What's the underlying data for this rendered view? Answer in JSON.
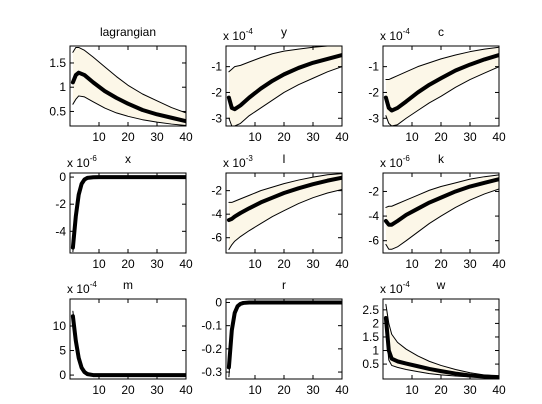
{
  "chart_data": [
    {
      "type": "line",
      "title": "lagrangian",
      "exponent": "",
      "xlim": [
        0,
        40
      ],
      "ylim": [
        0.2,
        1.85
      ],
      "xticks": [
        "10",
        "20",
        "30",
        "40"
      ],
      "yticks": [
        {
          "v": 0.5,
          "label": "0.5"
        },
        {
          "v": 1,
          "label": "1"
        },
        {
          "v": 1.5,
          "label": "1.5"
        }
      ],
      "series": [
        {
          "role": "upper",
          "x": [
            1,
            2,
            3,
            5,
            8,
            12,
            16,
            20,
            25,
            30,
            35,
            40
          ],
          "y": [
            1.72,
            1.82,
            1.82,
            1.76,
            1.62,
            1.42,
            1.22,
            1.04,
            0.86,
            0.72,
            0.58,
            0.47
          ]
        },
        {
          "role": "median",
          "x": [
            1,
            2,
            3,
            5,
            8,
            12,
            16,
            20,
            25,
            30,
            35,
            40
          ],
          "y": [
            1.1,
            1.25,
            1.3,
            1.25,
            1.1,
            0.92,
            0.78,
            0.66,
            0.53,
            0.44,
            0.37,
            0.3
          ]
        },
        {
          "role": "lower",
          "x": [
            1,
            2,
            3,
            5,
            8,
            12,
            16,
            20,
            25,
            30,
            35,
            40
          ],
          "y": [
            0.65,
            0.75,
            0.82,
            0.8,
            0.7,
            0.57,
            0.47,
            0.4,
            0.33,
            0.28,
            0.24,
            0.21
          ]
        }
      ]
    },
    {
      "type": "line",
      "title": "y",
      "exponent": "-4",
      "xlim": [
        0,
        40
      ],
      "ylim": [
        -3.3,
        -0.2
      ],
      "xticks": [
        "10",
        "20",
        "30",
        "40"
      ],
      "yticks": [
        {
          "v": -3,
          "label": "-3"
        },
        {
          "v": -2,
          "label": "-2"
        },
        {
          "v": -1,
          "label": "-1"
        }
      ],
      "series": [
        {
          "role": "upper",
          "x": [
            1,
            2,
            3,
            5,
            8,
            12,
            16,
            20,
            25,
            30,
            35,
            40
          ],
          "y": [
            -1.2,
            -1.1,
            -1.0,
            -0.95,
            -0.82,
            -0.65,
            -0.5,
            -0.4,
            -0.32,
            -0.25,
            -0.2,
            -0.18
          ]
        },
        {
          "role": "median",
          "x": [
            1,
            2,
            3,
            5,
            8,
            12,
            16,
            20,
            25,
            30,
            35,
            40
          ],
          "y": [
            -2.2,
            -2.6,
            -2.65,
            -2.5,
            -2.2,
            -1.85,
            -1.55,
            -1.3,
            -1.05,
            -0.85,
            -0.7,
            -0.55
          ]
        },
        {
          "role": "lower",
          "x": [
            1,
            2,
            3,
            5,
            8,
            12,
            16,
            20,
            25,
            30,
            35,
            40
          ],
          "y": [
            -3.0,
            -3.3,
            -3.3,
            -3.2,
            -2.9,
            -2.6,
            -2.3,
            -2.0,
            -1.7,
            -1.45,
            -1.2,
            -1.0
          ]
        }
      ]
    },
    {
      "type": "line",
      "title": "c",
      "exponent": "-4",
      "xlim": [
        0,
        40
      ],
      "ylim": [
        -3.3,
        -0.2
      ],
      "xticks": [
        "10",
        "20",
        "30",
        "40"
      ],
      "yticks": [
        {
          "v": -3,
          "label": "-3"
        },
        {
          "v": -2,
          "label": "-2"
        },
        {
          "v": -1,
          "label": "-1"
        }
      ],
      "series": [
        {
          "role": "upper",
          "x": [
            1,
            2,
            3,
            5,
            8,
            12,
            16,
            20,
            25,
            30,
            35,
            40
          ],
          "y": [
            -1.5,
            -1.5,
            -1.45,
            -1.35,
            -1.2,
            -1.0,
            -0.85,
            -0.7,
            -0.55,
            -0.42,
            -0.32,
            -0.25
          ]
        },
        {
          "role": "median",
          "x": [
            1,
            2,
            3,
            5,
            8,
            12,
            16,
            20,
            25,
            30,
            35,
            40
          ],
          "y": [
            -2.2,
            -2.6,
            -2.7,
            -2.6,
            -2.35,
            -2.0,
            -1.7,
            -1.45,
            -1.15,
            -0.92,
            -0.72,
            -0.55
          ]
        },
        {
          "role": "lower",
          "x": [
            1,
            2,
            3,
            5,
            8,
            12,
            16,
            20,
            25,
            30,
            35,
            40
          ],
          "y": [
            -2.9,
            -3.2,
            -3.3,
            -3.25,
            -3.0,
            -2.7,
            -2.4,
            -2.15,
            -1.8,
            -1.5,
            -1.25,
            -1.0
          ]
        }
      ]
    },
    {
      "type": "line",
      "title": "x",
      "exponent": "-6",
      "xlim": [
        0,
        40
      ],
      "ylim": [
        -5.6,
        0.3
      ],
      "xticks": [
        "10",
        "20",
        "30",
        "40"
      ],
      "yticks": [
        {
          "v": -4,
          "label": "-4"
        },
        {
          "v": -2,
          "label": "-2"
        },
        {
          "v": 0,
          "label": "0"
        }
      ],
      "series": [
        {
          "role": "upper",
          "x": [
            1,
            2,
            3,
            4,
            5,
            6,
            8,
            10,
            15,
            20,
            30,
            40
          ],
          "y": [
            -4.9,
            -2.6,
            -1.1,
            -0.4,
            -0.12,
            -0.04,
            0,
            0,
            0,
            0,
            0,
            0
          ]
        },
        {
          "role": "median",
          "x": [
            1,
            2,
            3,
            4,
            5,
            6,
            8,
            10,
            15,
            20,
            30,
            40
          ],
          "y": [
            -5.2,
            -2.9,
            -1.3,
            -0.5,
            -0.18,
            -0.06,
            -0.01,
            0,
            0,
            0,
            0,
            0
          ]
        },
        {
          "role": "lower",
          "x": [
            1,
            2,
            3,
            4,
            5,
            6,
            8,
            10,
            15,
            20,
            30,
            40
          ],
          "y": [
            -5.5,
            -3.2,
            -1.5,
            -0.6,
            -0.22,
            -0.08,
            -0.02,
            0,
            0,
            0,
            0,
            0
          ]
        }
      ]
    },
    {
      "type": "line",
      "title": "l",
      "exponent": "-3",
      "xlim": [
        0,
        40
      ],
      "ylim": [
        -7.3,
        -0.5
      ],
      "xticks": [
        "10",
        "20",
        "30",
        "40"
      ],
      "yticks": [
        {
          "v": -6,
          "label": "-6"
        },
        {
          "v": -4,
          "label": "-4"
        },
        {
          "v": -2,
          "label": "-2"
        }
      ],
      "series": [
        {
          "role": "upper",
          "x": [
            1,
            2,
            3,
            5,
            8,
            12,
            16,
            20,
            25,
            30,
            35,
            40
          ],
          "y": [
            -3.0,
            -3.0,
            -2.9,
            -2.7,
            -2.4,
            -2.0,
            -1.7,
            -1.4,
            -1.1,
            -0.85,
            -0.65,
            -0.55
          ]
        },
        {
          "role": "median",
          "x": [
            1,
            2,
            3,
            5,
            8,
            12,
            16,
            20,
            25,
            30,
            35,
            40
          ],
          "y": [
            -4.5,
            -4.4,
            -4.2,
            -3.9,
            -3.5,
            -3.0,
            -2.6,
            -2.2,
            -1.8,
            -1.45,
            -1.15,
            -0.9
          ]
        },
        {
          "role": "lower",
          "x": [
            1,
            2,
            3,
            5,
            8,
            12,
            16,
            20,
            25,
            30,
            35,
            40
          ],
          "y": [
            -7.0,
            -6.6,
            -6.3,
            -5.9,
            -5.4,
            -4.8,
            -4.2,
            -3.7,
            -3.1,
            -2.6,
            -2.2,
            -1.9
          ]
        }
      ]
    },
    {
      "type": "line",
      "title": "k",
      "exponent": "-6",
      "xlim": [
        0,
        40
      ],
      "ylim": [
        -7.0,
        -0.5
      ],
      "xticks": [
        "10",
        "20",
        "30",
        "40"
      ],
      "yticks": [
        {
          "v": -6,
          "label": "-6"
        },
        {
          "v": -4,
          "label": "-4"
        },
        {
          "v": -2,
          "label": "-2"
        }
      ],
      "series": [
        {
          "role": "upper",
          "x": [
            1,
            2,
            3,
            5,
            8,
            12,
            16,
            20,
            25,
            30,
            35,
            40
          ],
          "y": [
            -3.3,
            -3.2,
            -3.2,
            -3.0,
            -2.7,
            -2.3,
            -1.9,
            -1.6,
            -1.3,
            -1.0,
            -0.8,
            -0.65
          ]
        },
        {
          "role": "median",
          "x": [
            1,
            2,
            3,
            5,
            8,
            12,
            16,
            20,
            25,
            30,
            35,
            40
          ],
          "y": [
            -4.4,
            -4.7,
            -4.7,
            -4.4,
            -3.9,
            -3.4,
            -2.9,
            -2.5,
            -2.0,
            -1.6,
            -1.3,
            -1.0
          ]
        },
        {
          "role": "lower",
          "x": [
            1,
            2,
            3,
            5,
            8,
            12,
            16,
            20,
            25,
            30,
            35,
            40
          ],
          "y": [
            -6.3,
            -6.7,
            -6.7,
            -6.5,
            -6.0,
            -5.3,
            -4.6,
            -4.0,
            -3.3,
            -2.7,
            -2.2,
            -1.8
          ]
        }
      ]
    },
    {
      "type": "line",
      "title": "m",
      "exponent": "-4",
      "xlim": [
        0,
        40
      ],
      "ylim": [
        -0.8,
        15.5
      ],
      "xticks": [
        "10",
        "20",
        "30",
        "40"
      ],
      "yticks": [
        {
          "v": 0,
          "label": "0"
        },
        {
          "v": 5,
          "label": "5"
        },
        {
          "v": 10,
          "label": "10"
        }
      ],
      "series": [
        {
          "role": "upper",
          "x": [
            1,
            2,
            3,
            4,
            5,
            6,
            8,
            10,
            15,
            20,
            30,
            40
          ],
          "y": [
            13,
            8,
            4,
            2,
            1,
            0.5,
            0.2,
            0.1,
            0.05,
            0,
            0,
            0
          ]
        },
        {
          "role": "median",
          "x": [
            1,
            2,
            3,
            4,
            5,
            6,
            8,
            10,
            15,
            20,
            30,
            40
          ],
          "y": [
            12,
            7,
            3.5,
            1.5,
            0.6,
            0.2,
            0,
            0,
            0,
            0,
            0,
            0
          ]
        },
        {
          "role": "lower",
          "x": [
            1,
            2,
            3,
            4,
            5,
            6,
            8,
            10,
            15,
            20,
            30,
            40
          ],
          "y": [
            11,
            6,
            3,
            1.2,
            0.4,
            0.1,
            -0.1,
            -0.1,
            -0.1,
            -0.1,
            -0.1,
            -0.1
          ]
        }
      ]
    },
    {
      "type": "line",
      "title": "r",
      "exponent": "",
      "xlim": [
        0,
        40
      ],
      "ylim": [
        -0.33,
        0.015
      ],
      "xticks": [
        "10",
        "20",
        "30",
        "40"
      ],
      "yticks": [
        {
          "v": -0.3,
          "label": "-0.3"
        },
        {
          "v": -0.2,
          "label": "-0.2"
        },
        {
          "v": -0.1,
          "label": "-0.1"
        },
        {
          "v": 0,
          "label": "0"
        }
      ],
      "series": [
        {
          "role": "upper",
          "x": [
            1,
            2,
            3,
            4,
            5,
            6,
            8,
            10,
            15,
            20,
            30,
            40
          ],
          "y": [
            -0.25,
            -0.1,
            -0.035,
            -0.012,
            -0.004,
            0,
            0,
            0,
            0,
            0,
            0,
            0
          ]
        },
        {
          "role": "median",
          "x": [
            1,
            2,
            3,
            4,
            5,
            6,
            8,
            10,
            15,
            20,
            30,
            40
          ],
          "y": [
            -0.28,
            -0.12,
            -0.045,
            -0.016,
            -0.006,
            -0.002,
            0,
            0,
            0,
            0,
            0,
            0
          ]
        },
        {
          "role": "lower",
          "x": [
            1,
            2,
            3,
            4,
            5,
            6,
            8,
            10,
            15,
            20,
            30,
            40
          ],
          "y": [
            -0.32,
            -0.14,
            -0.055,
            -0.02,
            -0.008,
            -0.003,
            -0.001,
            0,
            0,
            0,
            0,
            0
          ]
        }
      ]
    },
    {
      "type": "line",
      "title": "w",
      "exponent": "-4",
      "xlim": [
        0,
        40
      ],
      "ylim": [
        -0.05,
        2.9
      ],
      "xticks": [
        "10",
        "20",
        "30",
        "40"
      ],
      "yticks": [
        {
          "v": 0.5,
          "label": "0.5"
        },
        {
          "v": 1,
          "label": "1"
        },
        {
          "v": 1.5,
          "label": "1.5"
        },
        {
          "v": 2,
          "label": "2"
        },
        {
          "v": 2.5,
          "label": "2.5"
        }
      ],
      "series": [
        {
          "role": "upper",
          "x": [
            1,
            2,
            3,
            5,
            8,
            12,
            16,
            20,
            25,
            30,
            35,
            40
          ],
          "y": [
            2.7,
            2.0,
            1.6,
            1.3,
            1.05,
            0.8,
            0.6,
            0.45,
            0.3,
            0.18,
            0.1,
            0.05
          ]
        },
        {
          "role": "median",
          "x": [
            1,
            2,
            3,
            5,
            8,
            12,
            16,
            20,
            25,
            30,
            35,
            40
          ],
          "y": [
            2.2,
            1.0,
            0.7,
            0.6,
            0.52,
            0.42,
            0.32,
            0.24,
            0.15,
            0.08,
            0.04,
            0.02
          ]
        },
        {
          "role": "lower",
          "x": [
            1,
            2,
            3,
            5,
            8,
            12,
            16,
            20,
            25,
            30,
            35,
            40
          ],
          "y": [
            1.8,
            0.65,
            0.45,
            0.38,
            0.3,
            0.22,
            0.15,
            0.1,
            0.06,
            0.03,
            0.01,
            0
          ]
        }
      ]
    }
  ]
}
